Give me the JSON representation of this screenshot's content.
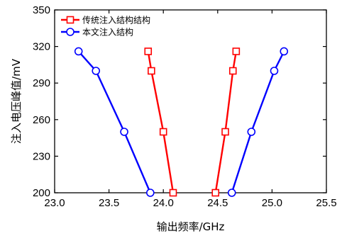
{
  "chart_data": {
    "type": "line",
    "xlabel": "输出频率/GHz",
    "ylabel": "注入电压峰值/mV",
    "xlim": [
      23.0,
      25.5
    ],
    "ylim": [
      200,
      350
    ],
    "xticks": [
      "23.0",
      "23.5",
      "24.0",
      "24.5",
      "25.0",
      "25.5"
    ],
    "yticks": [
      "200",
      "230",
      "260",
      "290",
      "320",
      "350"
    ],
    "legend_position": "top-left",
    "series": [
      {
        "name": "传统注入结构结构",
        "color": "#ff0000",
        "marker": "square",
        "points": [
          {
            "x": 23.86,
            "y": 316
          },
          {
            "x": 23.89,
            "y": 300
          },
          {
            "x": 24.0,
            "y": 250
          },
          {
            "x": 24.09,
            "y": 200
          },
          {
            "x": 24.48,
            "y": 200
          },
          {
            "x": 24.57,
            "y": 250
          },
          {
            "x": 24.64,
            "y": 300
          },
          {
            "x": 24.67,
            "y": 316
          }
        ]
      },
      {
        "name": "本文注入结构",
        "color": "#0000ff",
        "marker": "circle",
        "points": [
          {
            "x": 23.22,
            "y": 316
          },
          {
            "x": 23.38,
            "y": 300
          },
          {
            "x": 23.64,
            "y": 250
          },
          {
            "x": 23.88,
            "y": 200
          },
          {
            "x": 24.63,
            "y": 200
          },
          {
            "x": 24.81,
            "y": 250
          },
          {
            "x": 25.02,
            "y": 300
          },
          {
            "x": 25.11,
            "y": 316
          }
        ]
      }
    ]
  }
}
